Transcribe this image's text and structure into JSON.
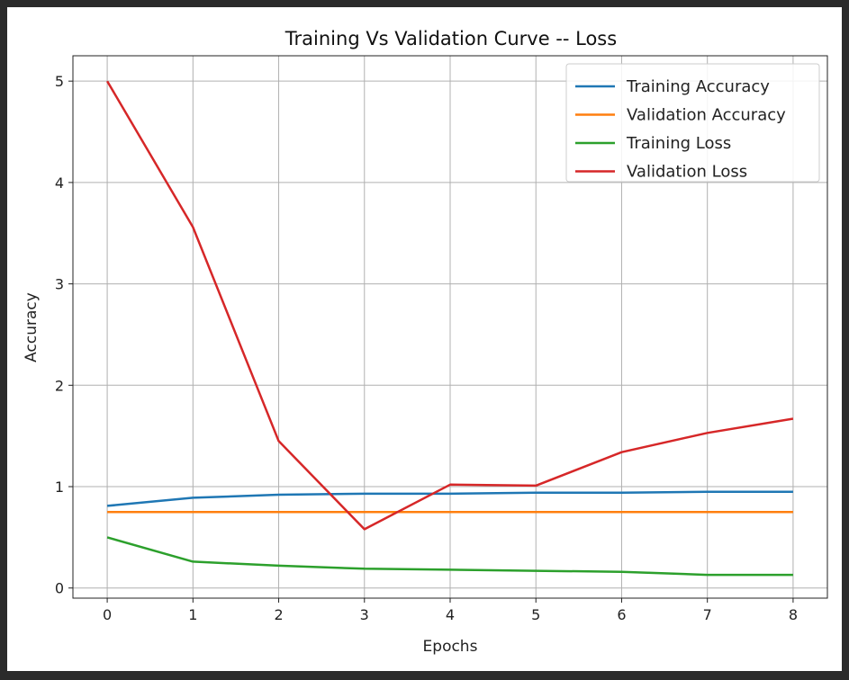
{
  "chart_data": {
    "type": "line",
    "title": "Training Vs Validation Curve -- Loss",
    "xlabel": "Epochs",
    "ylabel": "Accuracy",
    "xlim": [
      -0.4,
      8.4
    ],
    "ylim": [
      -0.1,
      5.25
    ],
    "xticks": [
      "0",
      "1",
      "2",
      "3",
      "4",
      "5",
      "6",
      "7",
      "8"
    ],
    "yticks": [
      "0",
      "1",
      "2",
      "3",
      "4",
      "5"
    ],
    "grid": true,
    "legend_position": "top-right",
    "x": [
      0,
      1,
      2,
      3,
      4,
      5,
      6,
      7,
      8
    ],
    "series": [
      {
        "name": "Training Accuracy",
        "color": "#1f77b4",
        "values": [
          0.81,
          0.89,
          0.92,
          0.93,
          0.93,
          0.94,
          0.94,
          0.95,
          0.95
        ]
      },
      {
        "name": "Validation Accuracy",
        "color": "#ff7f0e",
        "values": [
          0.75,
          0.75,
          0.75,
          0.75,
          0.75,
          0.75,
          0.75,
          0.75,
          0.75
        ]
      },
      {
        "name": "Training Loss",
        "color": "#2ca02c",
        "values": [
          0.5,
          0.26,
          0.22,
          0.19,
          0.18,
          0.17,
          0.16,
          0.13,
          0.13
        ]
      },
      {
        "name": "Validation Loss",
        "color": "#d62728",
        "values": [
          5.0,
          3.56,
          1.45,
          0.58,
          1.02,
          1.01,
          1.34,
          1.53,
          1.67
        ]
      }
    ]
  }
}
